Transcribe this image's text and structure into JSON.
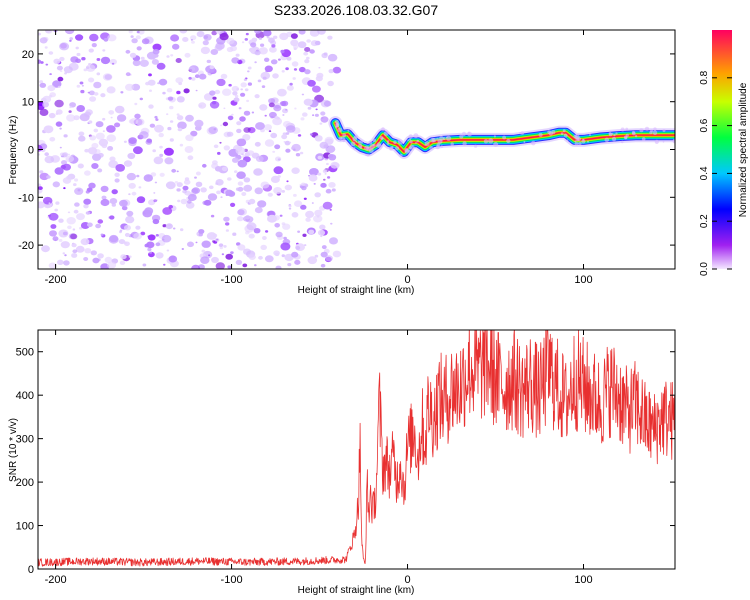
{
  "title": "S233.2026.108.03.32.G07",
  "chart_data": [
    {
      "type": "heatmap",
      "xlabel": "Height of straight line (km)",
      "ylabel": "Frequency (Hz)",
      "xlim": [
        -210,
        152
      ],
      "ylim": [
        -25,
        25
      ],
      "xticks": [
        -200,
        -100,
        0,
        100
      ],
      "yticks": [
        -20,
        -10,
        0,
        10,
        20
      ],
      "colorbar": {
        "label": "Normalized spectral amplitude",
        "range": [
          0,
          1
        ],
        "ticks": [
          0.0,
          0.2,
          0.4,
          0.6,
          0.8
        ]
      },
      "noise_region_x": [
        -210,
        -40
      ],
      "ridge": {
        "x": [
          -41,
          -38,
          -34,
          -30,
          -26,
          -22,
          -18,
          -14,
          -10,
          -6,
          -2,
          2,
          6,
          10,
          14,
          20,
          30,
          40,
          50,
          60,
          70,
          80,
          86,
          90,
          95,
          100,
          110,
          120,
          130,
          140,
          152
        ],
        "freq": [
          5.5,
          3.0,
          3.2,
          1.5,
          0.5,
          0.0,
          1.0,
          3.0,
          1.5,
          1.0,
          -0.5,
          1.5,
          1.5,
          0.5,
          1.5,
          1.8,
          2.0,
          2.0,
          2.0,
          2.0,
          2.5,
          3.0,
          3.5,
          3.5,
          2.0,
          2.0,
          2.5,
          2.8,
          3.0,
          3.0,
          3.0
        ]
      }
    },
    {
      "type": "line",
      "xlabel": "Height of straight line (km)",
      "ylabel": "SNR (10 * v/v)",
      "xlim": [
        -210,
        152
      ],
      "ylim": [
        0,
        550
      ],
      "xticks": [
        -200,
        -100,
        0,
        100
      ],
      "yticks": [
        0,
        100,
        200,
        300,
        400,
        500
      ],
      "series": [
        {
          "color": "#e83030",
          "x": [
            -210,
            -180,
            -150,
            -120,
            -90,
            -60,
            -35,
            -30,
            -28,
            -27,
            -26,
            -25,
            -24,
            -23,
            -22,
            -21,
            -20,
            -19,
            -18,
            -16,
            -14,
            -12,
            -10,
            -8,
            -6,
            -4,
            -2,
            0,
            2,
            4,
            6,
            8,
            10,
            12,
            14,
            16,
            18,
            20,
            25,
            30,
            35,
            40,
            45,
            50,
            55,
            60,
            65,
            70,
            75,
            80,
            85,
            90,
            95,
            100,
            105,
            110,
            115,
            120,
            125,
            130,
            135,
            140,
            145,
            152
          ],
          "y": [
            15,
            18,
            15,
            18,
            16,
            18,
            22,
            80,
            150,
            290,
            60,
            20,
            10,
            200,
            120,
            180,
            130,
            150,
            170,
            380,
            230,
            250,
            220,
            260,
            200,
            250,
            180,
            280,
            300,
            320,
            250,
            340,
            290,
            380,
            350,
            360,
            400,
            380,
            410,
            420,
            470,
            450,
            480,
            440,
            420,
            440,
            410,
            430,
            400,
            460,
            420,
            380,
            440,
            420,
            400,
            380,
            420,
            400,
            360,
            380,
            340,
            320,
            350,
            340
          ]
        }
      ]
    }
  ]
}
